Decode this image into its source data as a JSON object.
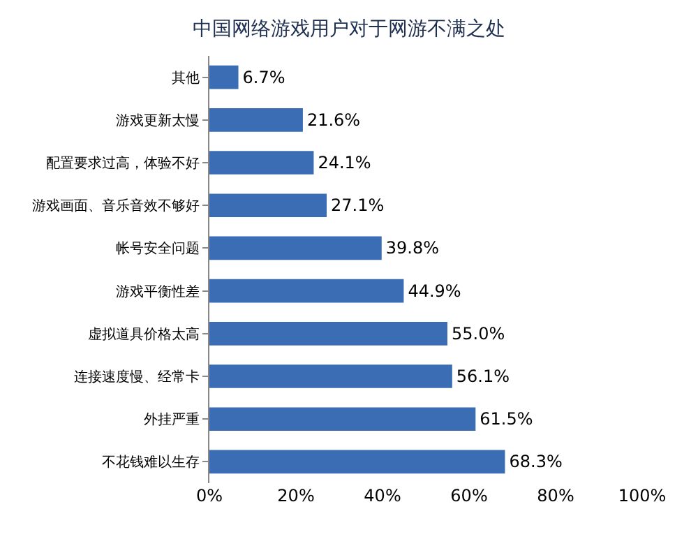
{
  "chart_data": {
    "type": "bar",
    "orientation": "horizontal",
    "title": "中国网络游戏用户对于网游不满之处",
    "categories": [
      "其他",
      "游戏更新太慢",
      "配置要求过高，体验不好",
      "游戏画面、音乐音效不够好",
      "帐号安全问题",
      "游戏平衡性差",
      "虚拟道具价格太高",
      "连接速度慢、经常卡",
      "外挂严重",
      "不花钱难以生存"
    ],
    "values": [
      6.7,
      21.6,
      24.1,
      27.1,
      39.8,
      44.9,
      55.0,
      56.1,
      61.5,
      68.3
    ],
    "value_labels": [
      "6.7%",
      "21.6%",
      "24.1%",
      "27.1%",
      "39.8%",
      "44.9%",
      "55.0%",
      "56.1%",
      "61.5%",
      "68.3%"
    ],
    "color": "#3a6db3",
    "xlim": [
      0,
      100
    ],
    "xticks": [
      {
        "value": 0,
        "label": "0%"
      },
      {
        "value": 20,
        "label": "20%"
      },
      {
        "value": 40,
        "label": "40%"
      },
      {
        "value": 60,
        "label": "60%"
      },
      {
        "value": 80,
        "label": "80%"
      },
      {
        "value": 100,
        "label": "100%"
      }
    ],
    "grid": false,
    "legend": false
  }
}
